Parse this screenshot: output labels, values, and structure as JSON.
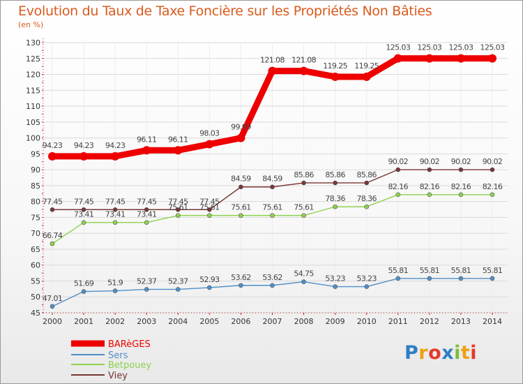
{
  "chart_data": {
    "type": "line",
    "title": "Evolution du Taux de Taxe Foncière sur les Propriétés Non Bâties",
    "ylabel": "(en %)",
    "xlabel": "",
    "ylim": [
      45,
      130
    ],
    "yticks": [
      45,
      50,
      55,
      60,
      65,
      70,
      75,
      80,
      85,
      90,
      95,
      100,
      105,
      110,
      115,
      120,
      125,
      130
    ],
    "categories": [
      "2000",
      "2001",
      "2002",
      "2003",
      "2004",
      "2005",
      "2006",
      "2007",
      "2008",
      "2009",
      "2010",
      "2011",
      "2012",
      "2013",
      "2014"
    ],
    "series": [
      {
        "name": "BARèGES",
        "color": "#ee0000",
        "values": [
          94.23,
          94.23,
          94.23,
          96.11,
          96.11,
          98.03,
          99.99,
          121.08,
          121.08,
          119.25,
          119.25,
          125.03,
          125.03,
          125.03,
          125.03
        ],
        "labels": [
          "94.23",
          "94.23",
          "94.23",
          "96.11",
          "96.11",
          "98.03",
          "99.99",
          "121.08",
          "121.08",
          "119.25",
          "119.25",
          "125.03",
          "125.03",
          "125.03",
          "125.03"
        ]
      },
      {
        "name": "Sers",
        "color": "#4f8fc8",
        "values": [
          47.01,
          51.69,
          51.9,
          52.37,
          52.37,
          52.93,
          53.62,
          53.62,
          54.75,
          53.23,
          53.23,
          55.81,
          55.81,
          55.81,
          55.81
        ],
        "labels": [
          "47.01",
          "51.69",
          "51.9",
          "52.37",
          "52.37",
          "52.93",
          "53.62",
          "53.62",
          "54.75",
          "53.23",
          "53.23",
          "55.81",
          "55.81",
          "55.81",
          "55.81"
        ]
      },
      {
        "name": "Betpouey",
        "color": "#8fd14f",
        "values": [
          66.74,
          73.41,
          73.41,
          73.41,
          75.61,
          75.61,
          75.61,
          75.61,
          75.61,
          78.36,
          78.36,
          82.16,
          82.16,
          82.16,
          82.16
        ],
        "labels": [
          "66.74",
          "73.41",
          "73.41",
          "73.41",
          "75.61",
          "75.61",
          "75.61",
          "75.61",
          "75.61",
          "78.36",
          "78.36",
          "82.16",
          "82.16",
          "82.16",
          "82.16"
        ]
      },
      {
        "name": "Viey",
        "color": "#7a3535",
        "values": [
          77.45,
          77.45,
          77.45,
          77.45,
          77.45,
          77.45,
          84.59,
          84.59,
          85.86,
          85.86,
          85.86,
          90.02,
          90.02,
          90.02,
          90.02
        ],
        "labels": [
          "77.45",
          "77.45",
          "77.45",
          "77.45",
          "77.45",
          "77.45",
          "84.59",
          "84.59",
          "85.86",
          "85.86",
          "85.86",
          "90.02",
          "90.02",
          "90.02",
          "90.02"
        ]
      }
    ],
    "legend_position": "bottom-left"
  },
  "brand": {
    "logo_letters": [
      "P",
      "r",
      "o",
      "x",
      "i",
      "t",
      "i"
    ]
  },
  "colors": {
    "title": "#d95a1c",
    "axis": "#cc2222",
    "grid": "#d9d9d9"
  }
}
